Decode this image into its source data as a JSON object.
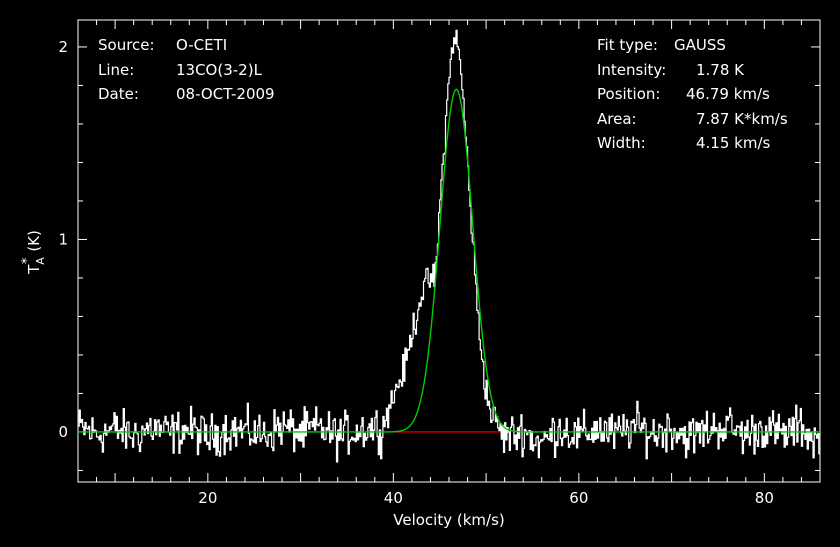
{
  "header_left": {
    "source_label": "Source:",
    "source_value": "O-CETI",
    "line_label": "Line:",
    "line_value": "13CO(3-2)L",
    "date_label": "Date:",
    "date_value": "08-OCT-2009"
  },
  "header_right": {
    "fit_type_label": "Fit type:",
    "fit_type_value": "GAUSS",
    "intensity_label": "Intensity:",
    "intensity_value": "1.78 K",
    "position_label": "Position:",
    "position_value": "46.79 km/s",
    "area_label": "Area:",
    "area_value": "7.87 K*km/s",
    "width_label": "Width:",
    "width_value": "4.15 km/s"
  },
  "colors": {
    "background": "#000000",
    "spectrum": "#ffffff",
    "fit": "#00cc00",
    "baseline": "#ff0000",
    "axes": "#ffffff"
  },
  "chart_data": {
    "type": "line",
    "title": "",
    "xlabel": "Velocity (km/s)",
    "ylabel": "T*A (K)",
    "ylabel_main": "T",
    "ylabel_sup": "*",
    "ylabel_sub": "A",
    "ylabel_units": "(K)",
    "xlim": [
      6,
      86
    ],
    "ylim": [
      -0.26,
      2.14
    ],
    "xticks": [
      20,
      40,
      60,
      80
    ],
    "yticks": [
      0,
      1,
      2
    ],
    "grid": false,
    "series": [
      {
        "kind": "spectrum",
        "x": [
          6.5,
          8.0,
          10.0,
          12.0,
          14.0,
          16.0,
          18.0,
          20.0,
          22.0,
          24.0,
          26.0,
          28.0,
          30.0,
          32.0,
          34.0,
          36.0,
          38.0,
          39.0,
          40.0,
          40.5,
          41.0,
          41.5,
          42.0,
          42.5,
          43.0,
          43.5,
          44.0,
          44.5,
          45.0,
          45.5,
          46.0,
          46.5,
          47.0,
          47.5,
          48.0,
          48.5,
          49.0,
          49.5,
          50.0,
          50.5,
          51.0,
          51.5,
          52.0,
          53.0,
          54.0,
          55.0,
          56.0,
          58.0,
          60.0,
          62.0,
          64.0,
          66.0,
          68.0,
          70.0,
          72.0,
          74.0,
          76.0,
          78.0,
          80.0,
          82.0,
          84.0,
          85.5
        ],
        "y": [
          0.08,
          -0.05,
          0.06,
          -0.08,
          0.1,
          -0.04,
          0.07,
          -0.12,
          0.05,
          0.02,
          -0.06,
          0.12,
          -0.03,
          0.09,
          -0.1,
          0.04,
          0.1,
          0.06,
          0.18,
          0.25,
          0.3,
          0.38,
          0.52,
          0.6,
          0.72,
          0.76,
          0.8,
          0.78,
          1.15,
          1.5,
          1.82,
          2.07,
          2.0,
          1.76,
          1.4,
          1.05,
          0.68,
          0.42,
          0.22,
          0.1,
          0.06,
          0.02,
          -0.05,
          -0.08,
          0.06,
          -0.14,
          -0.24,
          0.1,
          -0.1,
          0.08,
          -0.07,
          0.12,
          -0.04,
          0.09,
          -0.12,
          0.06,
          0.13,
          -0.07,
          0.1,
          -0.08,
          0.12,
          -0.18
        ]
      },
      {
        "kind": "gaussian-fit",
        "amplitude": 1.78,
        "center": 46.79,
        "fwhm": 4.15
      },
      {
        "kind": "baseline",
        "x": [
          40.0,
          52.0
        ],
        "y": [
          0,
          0
        ]
      }
    ]
  }
}
